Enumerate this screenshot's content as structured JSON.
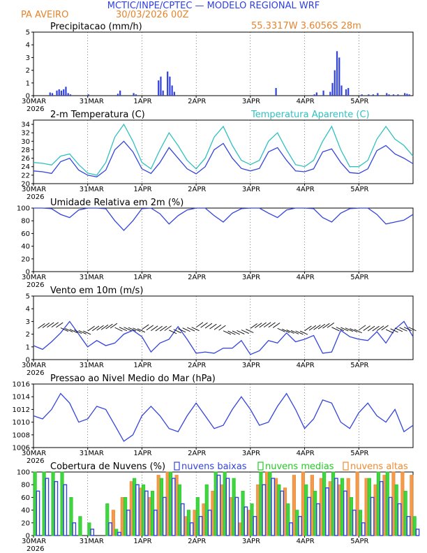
{
  "header": {
    "title": "MCTIC/INPE/CPTEC — MODELO REGIONAL WRF",
    "location": "PA AVEIRO",
    "run": "30/03/2026 00Z",
    "coords": "55.3317W 3.6056S 28m"
  },
  "colors": {
    "title": "#2e40dd",
    "accent": "#e8832a",
    "series_main": "#3344dd",
    "series_apparent": "#30c0c0",
    "low_clouds": "#3344dd",
    "mid_clouds": "#22cc22",
    "high_clouds": "#f08a30",
    "axis": "#000000"
  },
  "x_axis": {
    "start_label": "30MAR",
    "year_label": "2026",
    "tick_labels": [
      "30MAR",
      "31MAR",
      "1APR",
      "2APR",
      "3APR",
      "4APR",
      "5APR"
    ],
    "tick_hours": [
      0,
      24,
      48,
      72,
      96,
      120,
      144
    ],
    "range_hours": [
      0,
      168
    ]
  },
  "chart_data": [
    {
      "type": "bar",
      "title": "Precipitacao (mm/h)",
      "ylim": [
        0,
        5
      ],
      "yticks": [
        0,
        1,
        2,
        3,
        4,
        5
      ],
      "x_hours": [
        7,
        8,
        10,
        11,
        12,
        13,
        14,
        15,
        16,
        24,
        37,
        38,
        44,
        45,
        55,
        56,
        57,
        59,
        60,
        61,
        62,
        107,
        124,
        125,
        128,
        131,
        132,
        133,
        134,
        135,
        136,
        138,
        139,
        145,
        148,
        150,
        152,
        156,
        157,
        159,
        161,
        164,
        165,
        166
      ],
      "values": [
        0.25,
        0.2,
        0.4,
        0.5,
        0.4,
        0.5,
        0.7,
        0.2,
        0.1,
        0.1,
        0.15,
        0.4,
        0.2,
        0.1,
        1.2,
        1.5,
        0.4,
        1.9,
        1.5,
        0.8,
        0.3,
        0.6,
        0.1,
        0.25,
        0.4,
        0.3,
        1.0,
        2.0,
        3.5,
        3.0,
        0.8,
        0.5,
        0.6,
        0.1,
        0.1,
        0.1,
        0.2,
        0.2,
        0.1,
        0.1,
        0.1,
        0.2,
        0.15,
        0.1
      ]
    },
    {
      "type": "line",
      "title": "2-m Temperatura (C)",
      "title2": "Temperatura Aparente (C)",
      "ylim": [
        20,
        35
      ],
      "yticks": [
        20,
        22,
        24,
        26,
        28,
        30,
        32,
        34
      ],
      "series": [
        {
          "name": "2-m Temperatura (C)",
          "x": [
            0,
            4,
            8,
            12,
            16,
            20,
            24,
            28,
            32,
            36,
            40,
            44,
            48,
            52,
            56,
            60,
            64,
            68,
            72,
            76,
            80,
            84,
            88,
            92,
            96,
            100,
            104,
            108,
            112,
            116,
            120,
            124,
            128,
            132,
            136,
            140,
            144,
            148,
            152,
            156,
            160,
            164,
            168
          ],
          "values": [
            23.0,
            22.8,
            22.4,
            25.2,
            26.0,
            23.2,
            22.0,
            21.6,
            23.2,
            28.0,
            30.0,
            27.5,
            23.5,
            22.4,
            25.0,
            28.5,
            26.0,
            23.5,
            22.3,
            24.0,
            28.0,
            29.5,
            26.0,
            23.6,
            23.0,
            23.6,
            27.5,
            28.5,
            25.5,
            23.0,
            22.8,
            23.5,
            27.5,
            28.2,
            25.0,
            22.6,
            22.4,
            23.5,
            27.8,
            29.0,
            27.0,
            26.0,
            24.7
          ]
        },
        {
          "name": "Temperatura Aparente (C)",
          "x": [
            0,
            4,
            8,
            12,
            16,
            20,
            24,
            28,
            32,
            36,
            40,
            44,
            48,
            52,
            56,
            60,
            64,
            68,
            72,
            76,
            80,
            84,
            88,
            92,
            96,
            100,
            104,
            108,
            112,
            116,
            120,
            124,
            128,
            132,
            136,
            140,
            144,
            148,
            152,
            156,
            160,
            164,
            168
          ],
          "values": [
            25.0,
            24.8,
            24.4,
            26.5,
            27.0,
            24.5,
            22.5,
            22.0,
            25.0,
            31.0,
            34.0,
            30.0,
            25.0,
            23.5,
            28.0,
            32.0,
            29.0,
            25.5,
            23.5,
            26.0,
            31.0,
            33.5,
            29.0,
            25.5,
            24.5,
            25.5,
            30.0,
            32.0,
            28.0,
            24.5,
            24.0,
            25.5,
            30.0,
            33.5,
            28.0,
            24.0,
            24.0,
            25.5,
            30.5,
            33.5,
            30.5,
            29.0,
            26.5
          ]
        }
      ]
    },
    {
      "type": "line",
      "title": "Umidade Relativa em 2m (%)",
      "ylim": [
        0,
        100
      ],
      "yticks": [
        0,
        20,
        40,
        60,
        80,
        100
      ],
      "x": [
        0,
        4,
        8,
        12,
        16,
        20,
        24,
        28,
        32,
        36,
        40,
        44,
        48,
        52,
        56,
        60,
        64,
        68,
        72,
        76,
        80,
        84,
        88,
        92,
        96,
        100,
        104,
        108,
        112,
        116,
        120,
        124,
        128,
        132,
        136,
        140,
        144,
        148,
        152,
        156,
        160,
        164,
        168
      ],
      "values": [
        100,
        100,
        99,
        90,
        85,
        97,
        100,
        100,
        99,
        80,
        65,
        80,
        99,
        100,
        91,
        75,
        88,
        97,
        100,
        100,
        88,
        78,
        92,
        99,
        100,
        100,
        92,
        85,
        97,
        100,
        100,
        99,
        85,
        78,
        92,
        99,
        100,
        100,
        90,
        75,
        78,
        81,
        90
      ]
    },
    {
      "type": "line",
      "title": "Vento em 10m (m/s)",
      "ylim": [
        0,
        5
      ],
      "yticks": [
        0,
        1,
        2,
        3,
        4,
        5
      ],
      "x": [
        0,
        4,
        8,
        12,
        16,
        20,
        24,
        28,
        32,
        36,
        40,
        44,
        48,
        52,
        56,
        60,
        64,
        68,
        72,
        76,
        80,
        84,
        88,
        92,
        96,
        100,
        104,
        108,
        112,
        116,
        120,
        124,
        128,
        132,
        136,
        140,
        144,
        148,
        152,
        156,
        160,
        164,
        168
      ],
      "values": [
        1.1,
        0.8,
        1.4,
        2.1,
        3.0,
        2.0,
        1.0,
        1.5,
        1.1,
        1.3,
        2.0,
        2.3,
        1.8,
        0.6,
        1.3,
        1.6,
        2.6,
        1.6,
        0.5,
        0.6,
        0.5,
        0.9,
        0.9,
        1.5,
        0.4,
        0.7,
        1.5,
        1.3,
        2.1,
        1.4,
        1.6,
        1.9,
        0.5,
        0.6,
        2.3,
        1.8,
        1.6,
        1.5,
        2.2,
        1.3,
        2.4,
        3.0,
        1.8
      ],
      "arrows_label_hint": "wind barbs along mid-panel"
    },
    {
      "type": "line",
      "title": "Pressao ao Nivel Medio do Mar (hPa)",
      "ylim": [
        1006,
        1016
      ],
      "yticks": [
        1006,
        1008,
        1010,
        1012,
        1014,
        1016
      ],
      "x": [
        0,
        4,
        8,
        12,
        16,
        20,
        24,
        28,
        32,
        36,
        40,
        44,
        48,
        52,
        56,
        60,
        64,
        68,
        72,
        76,
        80,
        84,
        88,
        92,
        96,
        100,
        104,
        108,
        112,
        116,
        120,
        124,
        128,
        132,
        136,
        140,
        144,
        148,
        152,
        156,
        160,
        164,
        168
      ],
      "values": [
        1011.0,
        1010.5,
        1012.0,
        1014.5,
        1013.0,
        1010.0,
        1010.5,
        1012.5,
        1012.0,
        1009.5,
        1007.0,
        1008.0,
        1011.0,
        1012.5,
        1011.0,
        1009.0,
        1008.5,
        1011.0,
        1013.0,
        1011.0,
        1009.0,
        1009.5,
        1012.0,
        1014.0,
        1012.0,
        1009.5,
        1010.0,
        1012.5,
        1014.5,
        1012.0,
        1009.0,
        1010.5,
        1013.5,
        1013.0,
        1010.0,
        1009.0,
        1011.5,
        1013.0,
        1011.0,
        1010.0,
        1012.0,
        1008.5,
        1009.5
      ]
    },
    {
      "type": "bar",
      "title": "Cobertura de Nuvens (%)",
      "ylim": [
        0,
        100
      ],
      "yticks": [
        0,
        20,
        40,
        60,
        80,
        100
      ],
      "legend": [
        "nuvens baixas",
        "nuvens medias",
        "nuvens altas"
      ],
      "x": [
        0,
        4,
        8,
        12,
        16,
        20,
        24,
        28,
        32,
        36,
        40,
        44,
        48,
        52,
        56,
        60,
        64,
        68,
        72,
        76,
        80,
        84,
        88,
        92,
        96,
        100,
        104,
        108,
        112,
        116,
        120,
        124,
        128,
        132,
        136,
        140,
        144,
        148,
        152,
        156,
        160,
        164,
        168
      ],
      "series": [
        {
          "name": "nuvens baixas",
          "values": [
            70,
            90,
            85,
            80,
            20,
            0,
            10,
            0,
            20,
            5,
            40,
            80,
            70,
            40,
            60,
            90,
            50,
            20,
            30,
            40,
            95,
            90,
            60,
            45,
            30,
            80,
            90,
            70,
            20,
            30,
            60,
            50,
            75,
            90,
            70,
            40,
            20,
            60,
            85,
            60,
            50,
            30,
            10
          ]
        },
        {
          "name": "nuvens medias",
          "values": [
            100,
            100,
            100,
            100,
            60,
            30,
            20,
            0,
            50,
            10,
            60,
            90,
            80,
            70,
            90,
            100,
            80,
            40,
            60,
            80,
            100,
            100,
            90,
            70,
            50,
            100,
            100,
            80,
            50,
            40,
            80,
            70,
            100,
            100,
            90,
            60,
            40,
            90,
            100,
            100,
            80,
            70,
            30
          ]
        },
        {
          "name": "nuvens altas",
          "values": [
            0,
            0,
            0,
            0,
            0,
            0,
            0,
            0,
            0,
            40,
            60,
            85,
            75,
            60,
            95,
            100,
            95,
            30,
            40,
            50,
            70,
            80,
            60,
            20,
            40,
            80,
            100,
            90,
            75,
            95,
            100,
            95,
            90,
            85,
            80,
            90,
            100,
            90,
            80,
            95,
            100,
            100,
            95
          ]
        }
      ]
    }
  ]
}
